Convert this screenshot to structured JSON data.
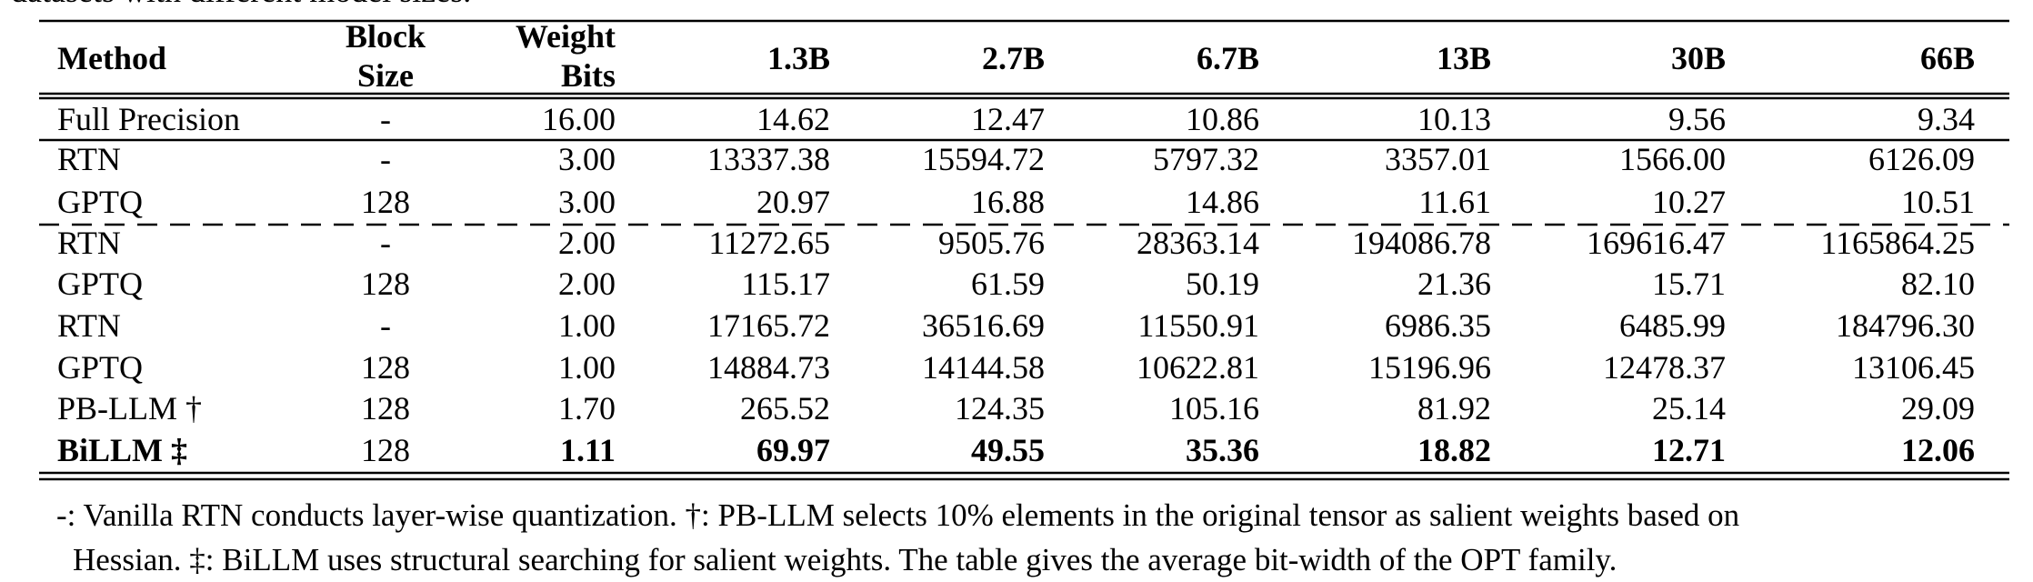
{
  "caption_fragment": "datasets with different model sizes.",
  "table": {
    "columns": [
      [
        "Method"
      ],
      [
        "Block",
        "Size"
      ],
      [
        "Weight",
        "Bits"
      ],
      [
        "1.3B"
      ],
      [
        "2.7B"
      ],
      [
        "6.7B"
      ],
      [
        "13B"
      ],
      [
        "30B"
      ],
      [
        "66B"
      ]
    ],
    "rows": [
      [
        "Full Precision",
        "-",
        "16.00",
        "14.62",
        "12.47",
        "10.86",
        "10.13",
        "9.56",
        "9.34"
      ],
      [
        "RTN",
        "-",
        "3.00",
        "13337.38",
        "15594.72",
        "5797.32",
        "3357.01",
        "1566.00",
        "6126.09"
      ],
      [
        "GPTQ",
        "128",
        "3.00",
        "20.97",
        "16.88",
        "14.86",
        "11.61",
        "10.27",
        "10.51"
      ],
      [
        "RTN",
        "-",
        "2.00",
        "11272.65",
        "9505.76",
        "28363.14",
        "194086.78",
        "169616.47",
        "1165864.25"
      ],
      [
        "GPTQ",
        "128",
        "2.00",
        "115.17",
        "61.59",
        "50.19",
        "21.36",
        "15.71",
        "82.10"
      ],
      [
        "RTN",
        "-",
        "1.00",
        "17165.72",
        "36516.69",
        "11550.91",
        "6986.35",
        "6485.99",
        "184796.30"
      ],
      [
        "GPTQ",
        "128",
        "1.00",
        "14884.73",
        "14144.58",
        "10622.81",
        "15196.96",
        "12478.37",
        "13106.45"
      ],
      [
        "PB-LLM †",
        "128",
        "1.70",
        "265.52",
        "124.35",
        "105.16",
        "81.92",
        "25.14",
        "29.09"
      ],
      [
        "BiLLM ‡",
        "128",
        "1.11",
        "69.97",
        "49.55",
        "35.36",
        "18.82",
        "12.71",
        "12.06"
      ]
    ]
  },
  "footnote": [
    "-: Vanilla RTN conducts layer-wise quantization. †: PB-LLM selects 10% elements in the original tensor as salient weights based on",
    "Hessian. ‡: BiLLM uses structural searching for salient weights. The table gives the average bit-width of the OPT family."
  ]
}
